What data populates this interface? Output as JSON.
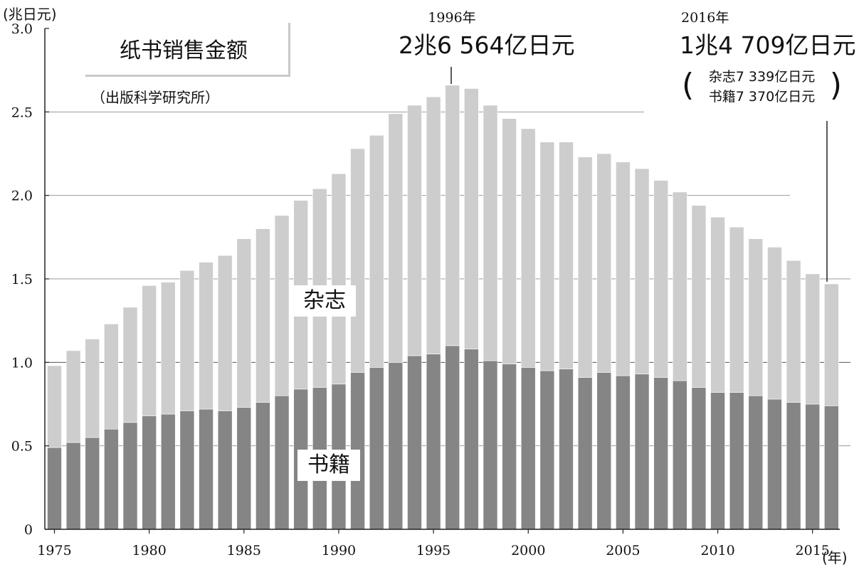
{
  "chart_data": {
    "type": "bar",
    "stacked": true,
    "title": "纸书销售金额",
    "source": "（出版科学研究所）",
    "ylabel": "(兆日元)",
    "xlabel": "(年)",
    "ylim": [
      0,
      3.0
    ],
    "yticks": [
      "0",
      "0.5",
      "1.0",
      "1.5",
      "2.0",
      "2.5",
      "3.0"
    ],
    "ytick_values": [
      0,
      0.5,
      1.0,
      1.5,
      2.0,
      2.5,
      3.0
    ],
    "xtick_labels": [
      "1975",
      "1980",
      "1985",
      "1990",
      "1995",
      "2000",
      "2005",
      "2010",
      "2015"
    ],
    "xtick_values": [
      1975,
      1980,
      1985,
      1990,
      1995,
      2000,
      2005,
      2010,
      2015
    ],
    "categories": [
      1975,
      1976,
      1977,
      1978,
      1979,
      1980,
      1981,
      1982,
      1983,
      1984,
      1985,
      1986,
      1987,
      1988,
      1989,
      1990,
      1991,
      1992,
      1993,
      1994,
      1995,
      1996,
      1997,
      1998,
      1999,
      2000,
      2001,
      2002,
      2003,
      2004,
      2005,
      2006,
      2007,
      2008,
      2009,
      2010,
      2011,
      2012,
      2013,
      2014,
      2015,
      2016
    ],
    "series": [
      {
        "name": "书籍",
        "color": "#858585",
        "values": [
          0.49,
          0.52,
          0.55,
          0.6,
          0.64,
          0.68,
          0.69,
          0.71,
          0.72,
          0.71,
          0.73,
          0.76,
          0.8,
          0.84,
          0.85,
          0.87,
          0.94,
          0.97,
          1.0,
          1.04,
          1.05,
          1.1,
          1.08,
          1.01,
          0.99,
          0.97,
          0.95,
          0.96,
          0.91,
          0.94,
          0.92,
          0.93,
          0.91,
          0.89,
          0.85,
          0.82,
          0.82,
          0.8,
          0.78,
          0.76,
          0.75,
          0.74
        ]
      },
      {
        "name": "杂志",
        "color": "#cdcdcd",
        "values": [
          0.49,
          0.55,
          0.59,
          0.63,
          0.69,
          0.78,
          0.79,
          0.84,
          0.88,
          0.93,
          1.01,
          1.04,
          1.08,
          1.13,
          1.19,
          1.26,
          1.34,
          1.39,
          1.49,
          1.5,
          1.54,
          1.56,
          1.56,
          1.53,
          1.47,
          1.43,
          1.37,
          1.36,
          1.32,
          1.31,
          1.28,
          1.23,
          1.18,
          1.13,
          1.09,
          1.05,
          0.99,
          0.94,
          0.91,
          0.85,
          0.78,
          0.73
        ]
      }
    ],
    "annotations": [
      {
        "year_label": "1996年",
        "value_label": "2兆6 564亿日元"
      },
      {
        "year_label": "2016年",
        "value_label": "1兆4 709亿日元",
        "detail": [
          "杂志7 339亿日元",
          "书籍7 370亿日元"
        ]
      }
    ]
  }
}
